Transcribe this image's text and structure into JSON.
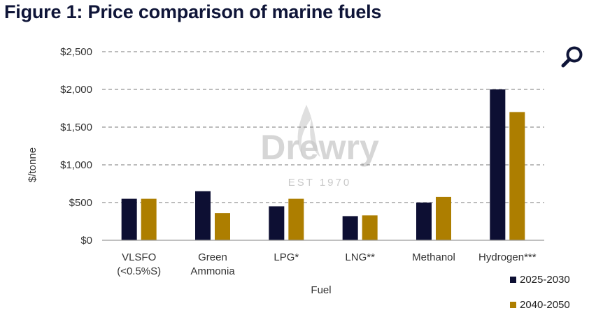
{
  "chart_data": {
    "type": "bar",
    "title": "Figure 1: Price comparison of marine fuels",
    "xlabel": "Fuel",
    "ylabel": "$/tonne",
    "ylim": [
      0,
      2500
    ],
    "yticks": [
      0,
      500,
      1000,
      1500,
      2000,
      2500
    ],
    "ytick_labels": [
      "$0",
      "$500",
      "$1,000",
      "$1,500",
      "$2,000",
      "$2,500"
    ],
    "grid": true,
    "categories": [
      [
        "VLSFO",
        "(<0.5%S)"
      ],
      [
        "Green",
        "Ammonia"
      ],
      [
        "LPG*"
      ],
      [
        "LNG**"
      ],
      [
        "Methanol"
      ],
      [
        "Hydrogen***"
      ]
    ],
    "series": [
      {
        "name": "2025-2030",
        "color": "#0d0f33",
        "values": [
          550,
          650,
          450,
          320,
          500,
          2000
        ]
      },
      {
        "name": "2040-2050",
        "color": "#ad7e00",
        "values": [
          550,
          360,
          550,
          330,
          575,
          1700
        ]
      }
    ],
    "legend_position": "bottom-right"
  },
  "watermark": {
    "name": "Drewry",
    "est": "EST 1970"
  },
  "toolbar": {
    "search_icon": "search-icon",
    "icon_color": "#0f1538"
  }
}
